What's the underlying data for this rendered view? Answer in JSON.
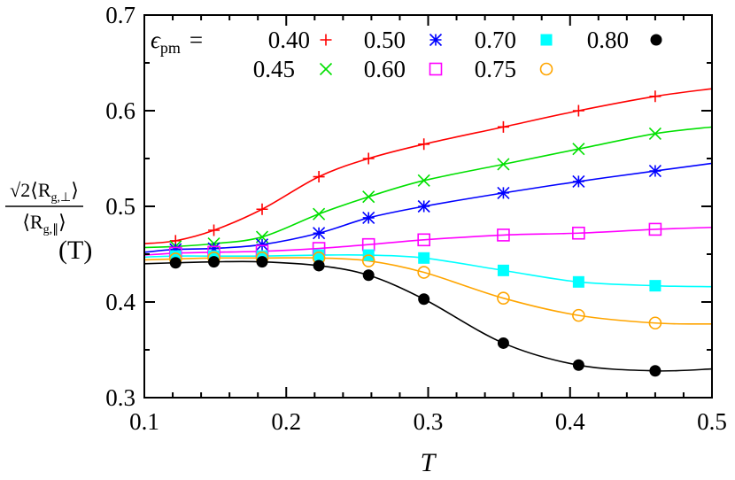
{
  "chart_data": {
    "type": "line",
    "xlabel": "T",
    "ylabel_parts": {
      "numerator": "√2⟨R",
      "num_sub": "g,⊥",
      "num_close": "⟩",
      "denominator": "⟨R",
      "den_sub": "g,∥",
      "den_close": "⟩",
      "suffix": "(T)"
    },
    "xlim": [
      0.1,
      0.5
    ],
    "ylim": [
      0.3,
      0.7
    ],
    "xticks": [
      "0.1",
      "0.2",
      "0.3",
      "0.4",
      "0.5"
    ],
    "yticks": [
      "0.3",
      "0.4",
      "0.5",
      "0.6",
      "0.7"
    ],
    "grid": false,
    "legend": {
      "position": "top",
      "prefix": "ϵ",
      "prefix_sub": "pm",
      "equals": "= "
    },
    "x": [
      0.122,
      0.149,
      0.183,
      0.223,
      0.258,
      0.297,
      0.353,
      0.406,
      0.46
    ],
    "series": [
      {
        "name": "0.40",
        "color": "#ff0000",
        "marker": "plus",
        "fit_ends": [
          0.461,
          0.623
        ],
        "values": [
          0.464,
          0.475,
          0.497,
          0.531,
          0.55,
          0.565,
          0.583,
          0.6,
          0.615
        ]
      },
      {
        "name": "0.45",
        "color": "#00e000",
        "marker": "cross",
        "fit_ends": [
          0.457,
          0.583
        ],
        "values": [
          0.458,
          0.461,
          0.468,
          0.492,
          0.51,
          0.527,
          0.544,
          0.56,
          0.576
        ]
      },
      {
        "name": "0.50",
        "color": "#0000ff",
        "marker": "star",
        "fit_ends": [
          0.452,
          0.545
        ],
        "values": [
          0.455,
          0.456,
          0.46,
          0.472,
          0.488,
          0.5,
          0.514,
          0.526,
          0.537
        ]
      },
      {
        "name": "0.60",
        "color": "#ff00ff",
        "marker": "open-square",
        "fit_ends": [
          0.449,
          0.478
        ],
        "values": [
          0.451,
          0.452,
          0.453,
          0.456,
          0.46,
          0.465,
          0.47,
          0.472,
          0.476
        ]
      },
      {
        "name": "0.70",
        "color": "#00ffff",
        "marker": "filled-square",
        "fit_ends": [
          0.447,
          0.416
        ],
        "values": [
          0.448,
          0.448,
          0.448,
          0.449,
          0.449,
          0.446,
          0.433,
          0.421,
          0.417
        ]
      },
      {
        "name": "0.75",
        "color": "#ffa500",
        "marker": "open-circle",
        "fit_ends": [
          0.444,
          0.377
        ],
        "values": [
          0.445,
          0.446,
          0.446,
          0.446,
          0.443,
          0.431,
          0.404,
          0.386,
          0.378
        ]
      },
      {
        "name": "0.80",
        "color": "#000000",
        "marker": "filled-circle",
        "fit_ends": [
          0.44,
          0.33
        ],
        "values": [
          0.441,
          0.442,
          0.442,
          0.438,
          0.428,
          0.403,
          0.357,
          0.334,
          0.328
        ]
      }
    ]
  }
}
